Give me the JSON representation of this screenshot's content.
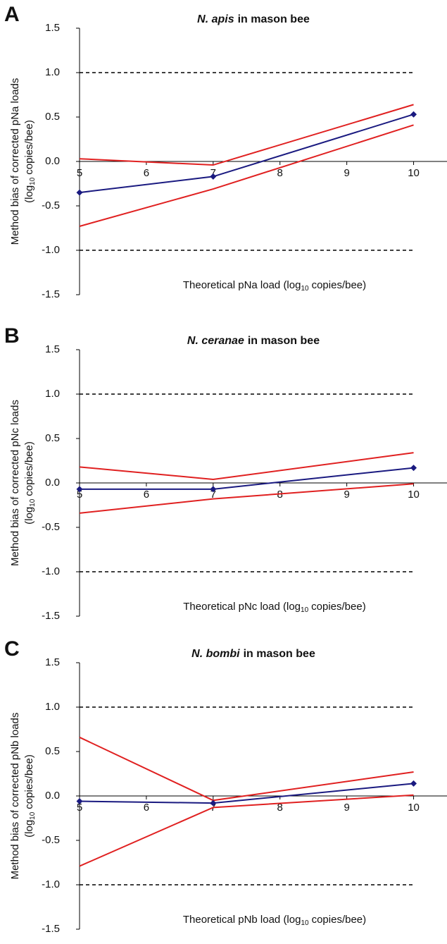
{
  "chart_data": [
    {
      "type": "line",
      "panel_label": "A",
      "title": {
        "italic": "N. apis",
        "text": "in mason bee"
      },
      "ylabel": {
        "line1": "Method bias of corrected pNa loads",
        "pre": "(log",
        "sub": "10",
        "post": "copies/bee)"
      },
      "xlabel": {
        "pre": "Theoretical pNa load (log",
        "sub": "10",
        "post": "copies/bee)"
      },
      "x": [
        5,
        7,
        10
      ],
      "series": [
        {
          "color": "#e02020",
          "values": [
            0.03,
            -0.04,
            0.64
          ],
          "markers": false
        },
        {
          "color": "#e02020",
          "values": [
            -0.73,
            -0.31,
            0.41
          ],
          "markers": false
        },
        {
          "color": "#1a1a80",
          "values": [
            -0.35,
            -0.17,
            0.53
          ],
          "markers": true
        }
      ],
      "reference_lines": [
        1,
        -1
      ],
      "xlim": [
        5,
        10.5
      ],
      "xticks": [
        5,
        6,
        7,
        8,
        9,
        10
      ],
      "ylim": [
        -1.5,
        1.5
      ],
      "yticks": [
        -1.5,
        {
          "value": -1,
          "label": "-1.0"
        },
        -0.5,
        {
          "value": 0,
          "label": "0.0"
        },
        0.5,
        {
          "value": 1,
          "label": "1.0"
        },
        1.5
      ]
    },
    {
      "type": "line",
      "panel_label": "B",
      "title": {
        "italic": "N. ceranae",
        "text": "in mason bee"
      },
      "ylabel": {
        "line1": "Method bias of corrected pNc loads",
        "pre": "(log",
        "sub": "10",
        "post": "copies/bee)"
      },
      "xlabel": {
        "pre": "Theoretical pNc load (log",
        "sub": "10",
        "post": "copies/bee)"
      },
      "x": [
        5,
        7,
        10
      ],
      "series": [
        {
          "color": "#e02020",
          "values": [
            0.18,
            0.04,
            0.34
          ],
          "markers": false
        },
        {
          "color": "#e02020",
          "values": [
            -0.34,
            -0.18,
            -0.01
          ],
          "markers": false
        },
        {
          "color": "#1a1a80",
          "values": [
            -0.07,
            -0.07,
            0.17
          ],
          "markers": true
        }
      ],
      "reference_lines": [
        1,
        -1
      ],
      "xlim": [
        5,
        10.5
      ],
      "xticks": [
        5,
        6,
        7,
        8,
        9,
        10
      ],
      "ylim": [
        -1.5,
        1.5
      ],
      "yticks": [
        -1.5,
        {
          "value": -1,
          "label": "-1.0"
        },
        -0.5,
        {
          "value": 0,
          "label": "0.0"
        },
        0.5,
        {
          "value": 1,
          "label": "1.0"
        },
        1.5
      ]
    },
    {
      "type": "line",
      "panel_label": "C",
      "title": {
        "italic": "N. bombi",
        "text": "in mason bee"
      },
      "ylabel": {
        "line1": "Method bias of corrected pNb loads",
        "pre": "(log",
        "sub": "10",
        "post": "copies/bee)"
      },
      "xlabel": {
        "pre": "Theoretical pNb load (log",
        "sub": "10",
        "post": "copies/bee)"
      },
      "x": [
        5,
        7,
        10
      ],
      "series": [
        {
          "color": "#e02020",
          "values": [
            0.66,
            -0.05,
            0.27
          ],
          "markers": false
        },
        {
          "color": "#e02020",
          "values": [
            -0.79,
            -0.13,
            0.01
          ],
          "markers": false
        },
        {
          "color": "#1a1a80",
          "values": [
            -0.06,
            -0.08,
            0.14
          ],
          "markers": true
        }
      ],
      "reference_lines": [
        1,
        -1
      ],
      "xlim": [
        5,
        10.5
      ],
      "xticks": [
        5,
        6,
        7,
        8,
        9,
        10
      ],
      "ylim": [
        -1.5,
        1.5
      ],
      "yticks": [
        -1.5,
        {
          "value": -1,
          "label": "-1.0"
        },
        -0.5,
        {
          "value": 0,
          "label": "0.0"
        },
        0.5,
        {
          "value": 1,
          "label": "1.0"
        },
        1.5
      ]
    }
  ]
}
